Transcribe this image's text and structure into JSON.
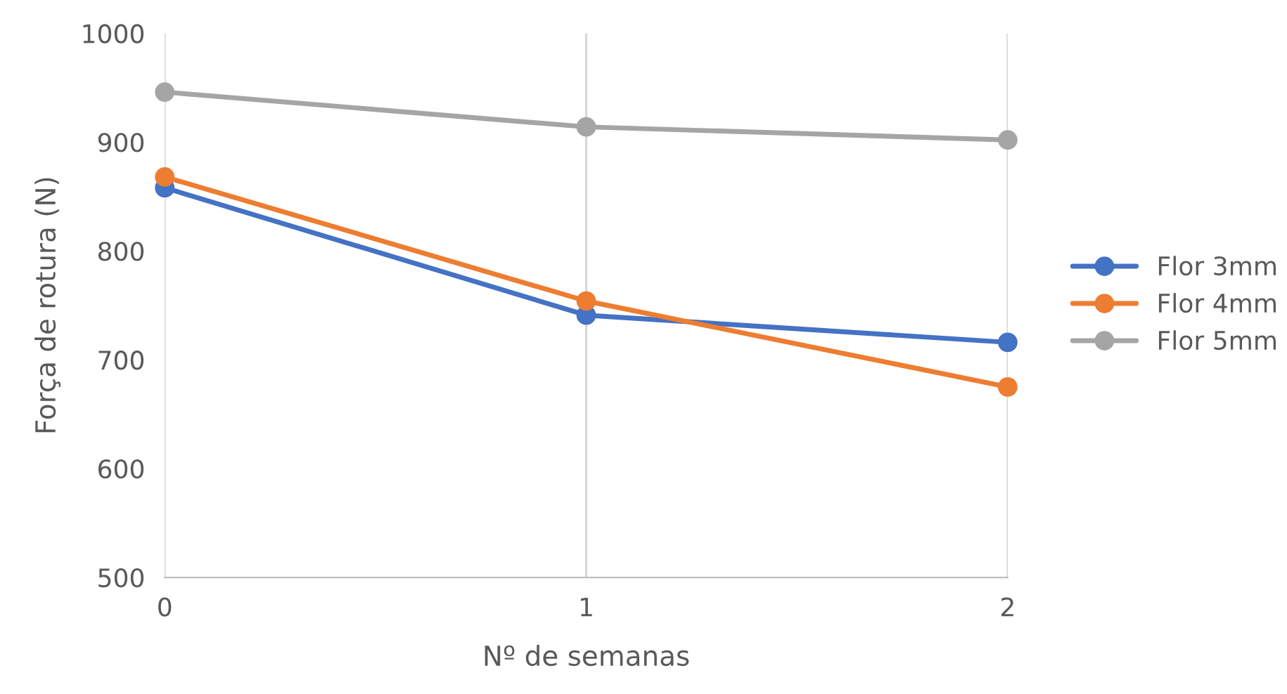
{
  "chart_data": {
    "type": "line",
    "xlabel": "Nº de semanas",
    "ylabel": "Força de rotura (N)",
    "x": [
      0,
      1,
      2
    ],
    "series": [
      {
        "name": "Flor 3mm",
        "color": "#4472c4",
        "values": [
          858,
          741,
          716
        ]
      },
      {
        "name": "Flor 4mm",
        "color": "#ed7d31",
        "values": [
          868,
          754,
          675
        ]
      },
      {
        "name": "Flor 5mm",
        "color": "#a5a5a5",
        "values": [
          946,
          914,
          902
        ]
      }
    ],
    "xlim": [
      0,
      2
    ],
    "xticks": [
      0,
      1,
      2
    ],
    "ylim": [
      500,
      1000
    ],
    "yticks": [
      500,
      600,
      700,
      800,
      900,
      1000
    ],
    "grid": "x",
    "legend": "right",
    "marker": "circle",
    "line_style": "solid"
  }
}
